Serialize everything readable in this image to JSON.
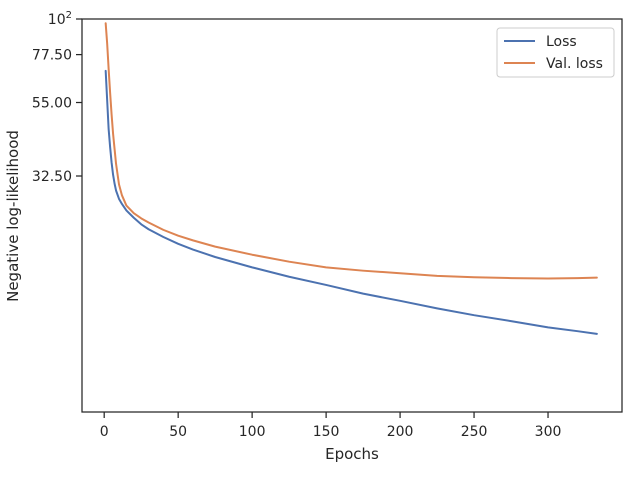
{
  "chart_data": {
    "type": "line",
    "xlabel": "Epochs",
    "ylabel": "Negative log-likelihood",
    "xlim": [
      -15,
      350
    ],
    "ylim": [
      6,
      100
    ],
    "x_ticks": [
      0,
      50,
      100,
      150,
      200,
      250,
      300
    ],
    "y_ticks": [
      {
        "value": 100,
        "label": "10",
        "sup": "2"
      },
      {
        "value": 77.5,
        "label": "77.50"
      },
      {
        "value": 55.0,
        "label": "55.00"
      },
      {
        "value": 32.5,
        "label": "32.50"
      }
    ],
    "y_scale": "log",
    "grid": false,
    "legend": "top-right",
    "series": [
      {
        "name": "Loss",
        "color": "#4c72b0",
        "x": [
          1,
          2,
          3,
          4,
          5,
          6,
          7,
          8,
          10,
          12,
          15,
          20,
          25,
          30,
          40,
          50,
          60,
          75,
          100,
          125,
          150,
          175,
          200,
          225,
          250,
          275,
          300,
          320,
          333
        ],
        "y": [
          69,
          56,
          45.5,
          40,
          35.8,
          32.8,
          30.8,
          29.3,
          27.6,
          26.6,
          25.4,
          24.1,
          23.0,
          22.2,
          21.0,
          20.0,
          19.2,
          18.2,
          16.9,
          15.8,
          14.9,
          14.0,
          13.3,
          12.6,
          12.0,
          11.5,
          11.0,
          10.7,
          10.5
        ]
      },
      {
        "name": "Val. loss",
        "color": "#dd8452",
        "x": [
          1,
          2,
          3,
          4,
          5,
          6,
          7,
          8,
          10,
          12,
          15,
          20,
          25,
          30,
          40,
          50,
          60,
          75,
          100,
          125,
          150,
          175,
          200,
          225,
          250,
          275,
          300,
          320,
          333
        ],
        "y": [
          97,
          84,
          70,
          59,
          50.5,
          44,
          39.5,
          35.5,
          30.6,
          28.3,
          26.3,
          24.9,
          24.0,
          23.3,
          22.1,
          21.2,
          20.5,
          19.6,
          18.5,
          17.6,
          16.9,
          16.5,
          16.2,
          15.9,
          15.75,
          15.65,
          15.6,
          15.65,
          15.7
        ]
      }
    ]
  }
}
